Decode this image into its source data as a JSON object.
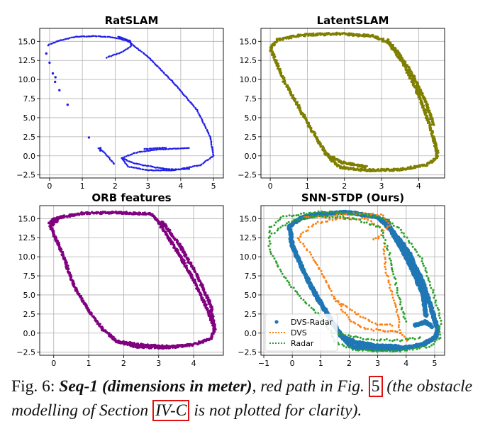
{
  "chart_data": [
    {
      "type": "scatter",
      "title": "RatSLAM",
      "xlim": [
        -0.3,
        5.3
      ],
      "ylim": [
        -2.9,
        16.7
      ],
      "xticks": [
        0,
        1,
        2,
        3,
        4,
        5
      ],
      "yticks": [
        -2.5,
        0.0,
        2.5,
        5.0,
        7.5,
        10.0,
        12.5,
        15.0
      ],
      "series": [
        {
          "name": "trajectory",
          "color": "#1f1fe8",
          "style": "dots",
          "size": 1.3,
          "paths": [
            [
              [
                -0.05,
                14.5
              ],
              [
                0.3,
                15.1
              ],
              [
                0.8,
                15.6
              ],
              [
                1.4,
                15.7
              ],
              [
                2.0,
                15.5
              ],
              [
                2.4,
                15.0
              ],
              [
                3.0,
                13.0
              ],
              [
                3.8,
                9.5
              ],
              [
                4.5,
                6.0
              ],
              [
                4.9,
                2.5
              ],
              [
                5.0,
                0.0
              ],
              [
                4.6,
                -1.2
              ],
              [
                3.8,
                -1.9
              ],
              [
                3.0,
                -1.9
              ],
              [
                2.4,
                -1.4
              ],
              [
                2.2,
                -0.3
              ]
            ],
            [
              [
                2.2,
                -0.3
              ],
              [
                2.6,
                0.4
              ],
              [
                3.2,
                0.8
              ],
              [
                3.8,
                0.95
              ],
              [
                4.3,
                1.0
              ]
            ],
            [
              [
                2.1,
                15.6
              ],
              [
                2.45,
                15.1
              ],
              [
                2.5,
                14.4
              ],
              [
                2.2,
                13.6
              ],
              [
                1.7,
                12.8
              ]
            ],
            [
              [
                2.2,
                -0.3
              ],
              [
                2.6,
                -1.0
              ],
              [
                3.2,
                -1.5
              ],
              [
                3.8,
                -1.8
              ],
              [
                4.3,
                -1.7
              ]
            ],
            [
              [
                1.5,
                1.0
              ],
              [
                1.7,
                0.3
              ],
              [
                2.0,
                -1.2
              ]
            ],
            [
              [
                2.9,
                0.9
              ],
              [
                3.3,
                1.0
              ],
              [
                3.6,
                1.1
              ]
            ]
          ]
        },
        {
          "name": "sparse",
          "color": "#1f1fe8",
          "style": "points",
          "size": 1.7,
          "points": [
            [
              -0.1,
              13.4
            ],
            [
              0.0,
              12.2
            ],
            [
              0.1,
              10.8
            ],
            [
              0.18,
              10.3
            ],
            [
              0.17,
              9.7
            ],
            [
              0.3,
              8.6
            ],
            [
              0.55,
              6.7
            ],
            [
              1.2,
              2.4
            ],
            [
              1.55,
              1.0
            ],
            [
              1.55,
              0.7
            ]
          ]
        }
      ]
    },
    {
      "type": "scatter",
      "title": "LatentSLAM",
      "xlim": [
        -0.25,
        4.7
      ],
      "ylim": [
        -2.9,
        16.7
      ],
      "xticks": [
        0,
        1,
        2,
        3,
        4
      ],
      "yticks": [
        -2.5,
        0.0,
        2.5,
        5.0,
        7.5,
        10.0,
        12.5,
        15.0
      ],
      "series": [
        {
          "name": "trajectory",
          "color": "#7f7f00",
          "style": "band",
          "size": 1.6,
          "paths": [
            [
              [
                0.0,
                14.0
              ],
              [
                0.2,
                15.2
              ],
              [
                0.8,
                15.8
              ],
              [
                1.8,
                16.0
              ],
              [
                2.8,
                15.7
              ],
              [
                3.2,
                14.8
              ],
              [
                3.6,
                12.0
              ],
              [
                4.0,
                8.0
              ],
              [
                4.3,
                4.0
              ],
              [
                4.5,
                0.5
              ],
              [
                4.5,
                -0.3
              ],
              [
                4.2,
                -1.2
              ],
              [
                3.5,
                -1.8
              ],
              [
                2.6,
                -1.9
              ],
              [
                1.9,
                -1.5
              ],
              [
                1.65,
                -0.5
              ],
              [
                1.5,
                0.3
              ],
              [
                1.1,
                3.5
              ],
              [
                0.7,
                7.0
              ],
              [
                0.4,
                9.5
              ],
              [
                0.15,
                12.5
              ],
              [
                0.0,
                14.0
              ]
            ],
            [
              [
                3.15,
                15.2
              ],
              [
                3.45,
                13.5
              ],
              [
                3.85,
                10.5
              ],
              [
                4.2,
                7.0
              ],
              [
                4.4,
                4.0
              ]
            ],
            [
              [
                1.5,
                0.3
              ],
              [
                1.9,
                -0.8
              ],
              [
                2.6,
                -1.5
              ]
            ]
          ]
        }
      ]
    },
    {
      "type": "scatter",
      "title": "ORB features",
      "xlim": [
        -0.4,
        4.85
      ],
      "ylim": [
        -2.9,
        16.7
      ],
      "xticks": [
        0,
        1,
        2,
        3,
        4
      ],
      "yticks": [
        -2.5,
        0.0,
        2.5,
        5.0,
        7.5,
        10.0,
        12.5,
        15.0
      ],
      "series": [
        {
          "name": "trajectory",
          "color": "#800080",
          "style": "band",
          "size": 1.6,
          "paths": [
            [
              [
                -0.1,
                14.0
              ],
              [
                0.0,
                15.0
              ],
              [
                0.8,
                15.7
              ],
              [
                1.8,
                15.8
              ],
              [
                2.8,
                15.6
              ],
              [
                3.0,
                14.5
              ],
              [
                3.5,
                11.0
              ],
              [
                4.0,
                7.0
              ],
              [
                4.4,
                3.0
              ],
              [
                4.6,
                0.5
              ],
              [
                4.5,
                -0.7
              ],
              [
                4.0,
                -1.5
              ],
              [
                3.2,
                -1.9
              ],
              [
                2.4,
                -1.8
              ],
              [
                1.8,
                -1.1
              ],
              [
                1.4,
                0.5
              ],
              [
                1.0,
                3.0
              ],
              [
                0.6,
                6.0
              ],
              [
                0.4,
                8.5
              ],
              [
                0.2,
                11.0
              ],
              [
                -0.1,
                14.0
              ]
            ],
            [
              [
                3.1,
                14.6
              ],
              [
                3.6,
                11.5
              ],
              [
                4.1,
                7.5
              ],
              [
                4.5,
                3.5
              ],
              [
                4.6,
                0.5
              ]
            ],
            [
              [
                1.8,
                -1.1
              ],
              [
                2.6,
                -1.6
              ],
              [
                3.5,
                -1.8
              ]
            ],
            [
              [
                -0.1,
                13.8
              ],
              [
                0.1,
                14.8
              ],
              [
                -0.15,
                14.5
              ]
            ]
          ]
        }
      ]
    },
    {
      "type": "scatter",
      "title": "SNN-STDP (Ours)",
      "xlim": [
        -1.1,
        5.35
      ],
      "ylim": [
        -2.9,
        16.7
      ],
      "xticks": [
        -1,
        0,
        1,
        2,
        3,
        4,
        5
      ],
      "yticks": [
        -2.5,
        0.0,
        2.5,
        5.0,
        7.5,
        10.0,
        12.5,
        15.0
      ],
      "legend_position": "lower-left",
      "series": [
        {
          "name": "DVS-Radar",
          "color": "#1f77b4",
          "style": "thick",
          "size": 3.0,
          "paths": [
            [
              [
                -0.1,
                14.0
              ],
              [
                0.3,
                15.1
              ],
              [
                1.0,
                15.6
              ],
              [
                2.0,
                15.8
              ],
              [
                3.0,
                15.2
              ],
              [
                3.5,
                13.5
              ],
              [
                4.1,
                10.5
              ],
              [
                4.6,
                6.5
              ],
              [
                4.9,
                3.0
              ],
              [
                5.1,
                0.5
              ],
              [
                5.05,
                -0.5
              ],
              [
                4.6,
                -1.5
              ],
              [
                3.8,
                -2.0
              ],
              [
                3.0,
                -2.1
              ],
              [
                2.1,
                -1.8
              ],
              [
                1.7,
                -0.3
              ],
              [
                1.4,
                1.5
              ],
              [
                0.9,
                4.5
              ],
              [
                0.4,
                8.0
              ],
              [
                0.0,
                11.5
              ],
              [
                -0.1,
                14.0
              ]
            ],
            [
              [
                3.3,
                14.7
              ],
              [
                3.7,
                12.0
              ],
              [
                4.2,
                8.5
              ],
              [
                4.6,
                5.0
              ],
              [
                4.7,
                2.2
              ]
            ],
            [
              [
                1.7,
                -0.3
              ],
              [
                2.2,
                -1.2
              ],
              [
                3.0,
                -1.7
              ],
              [
                3.8,
                -1.8
              ]
            ],
            [
              [
                4.3,
                1.0
              ],
              [
                4.7,
                1.5
              ],
              [
                4.9,
                0.8
              ]
            ]
          ]
        },
        {
          "name": "DVS",
          "color": "#ff7f0e",
          "style": "dotted",
          "size": 1.5,
          "paths": [
            [
              [
                0.4,
                15.2
              ],
              [
                1.2,
                15.3
              ],
              [
                2.4,
                15.7
              ],
              [
                3.2,
                15.4
              ],
              [
                3.4,
                14.1
              ],
              [
                3.0,
                12.5
              ],
              [
                2.8,
                12.0
              ]
            ],
            [
              [
                0.2,
                12.5
              ],
              [
                0.8,
                14.4
              ],
              [
                1.6,
                15.0
              ],
              [
                2.6,
                15.0
              ],
              [
                3.2,
                13.4
              ]
            ],
            [
              [
                0.2,
                12.5
              ],
              [
                0.6,
                10.5
              ],
              [
                1.1,
                7.5
              ],
              [
                1.5,
                4.5
              ],
              [
                2.0,
                1.8
              ],
              [
                2.5,
                0.6
              ],
              [
                3.2,
                0.3
              ],
              [
                3.8,
                0.1
              ],
              [
                4.1,
                -1.3
              ]
            ],
            [
              [
                3.8,
                0.1
              ],
              [
                3.6,
                4.0
              ],
              [
                3.3,
                8.0
              ],
              [
                3.2,
                12.0
              ]
            ],
            [
              [
                1.5,
                4.5
              ],
              [
                2.4,
                2.2
              ],
              [
                3.0,
                1.2
              ],
              [
                3.6,
                1.0
              ]
            ]
          ]
        },
        {
          "name": "Radar",
          "color": "#2ca02c",
          "style": "dotted",
          "size": 1.5,
          "paths": [
            [
              [
                -0.8,
                13.8
              ],
              [
                -0.3,
                15.3
              ],
              [
                1.0,
                15.9
              ],
              [
                2.5,
                15.6
              ],
              [
                3.3,
                15.0
              ],
              [
                3.8,
                13.5
              ],
              [
                4.5,
                10.0
              ],
              [
                4.9,
                6.0
              ],
              [
                5.2,
                2.0
              ],
              [
                5.2,
                -0.5
              ],
              [
                4.8,
                -1.8
              ],
              [
                3.6,
                -2.4
              ],
              [
                2.3,
                -2.3
              ],
              [
                1.5,
                -1.2
              ],
              [
                1.4,
                0.0
              ],
              [
                0.9,
                2.5
              ],
              [
                0.2,
                5.0
              ],
              [
                -0.4,
                8.0
              ],
              [
                -0.8,
                11.0
              ],
              [
                -0.8,
                13.8
              ]
            ],
            [
              [
                -0.7,
                13.0
              ],
              [
                -0.1,
                14.6
              ],
              [
                0.8,
                15.3
              ],
              [
                2.2,
                15.0
              ],
              [
                3.1,
                13.8
              ],
              [
                3.4,
                10.5
              ],
              [
                3.6,
                7.0
              ],
              [
                3.8,
                4.0
              ],
              [
                4.0,
                1.2
              ]
            ],
            [
              [
                1.4,
                0.0
              ],
              [
                2.5,
                -0.7
              ],
              [
                3.6,
                -1.0
              ],
              [
                4.6,
                -0.6
              ]
            ]
          ]
        }
      ]
    }
  ],
  "caption": {
    "label": "Fig. 6: ",
    "title": "Seq-1 (dimensions in meter)",
    "text1": ", red path in Fig. ",
    "ref1": "5",
    "text2": " (the obstacle modelling of Section ",
    "ref2": "IV-C",
    "text3": " is not plotted for clarity)."
  }
}
